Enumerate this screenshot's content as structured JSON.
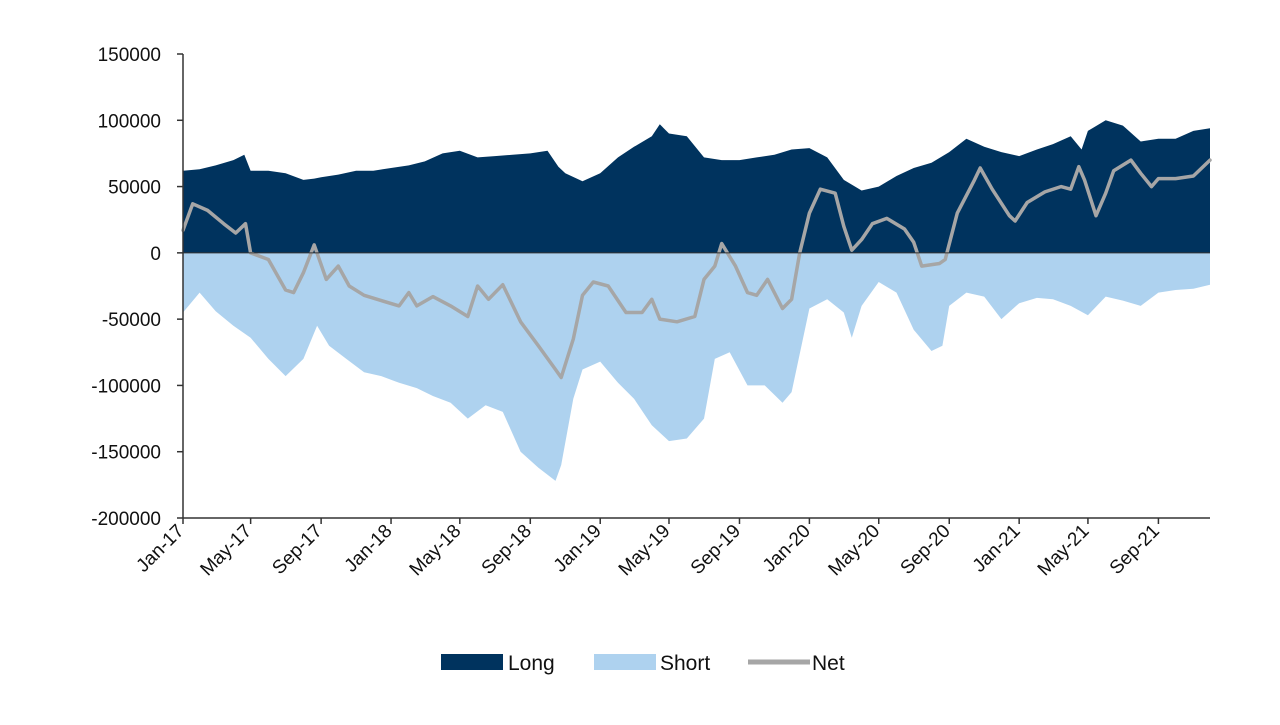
{
  "chart_data": {
    "type": "area",
    "title": "",
    "xlabel": "",
    "ylabel": "",
    "x_ticks": [
      "Jan-17",
      "May-17",
      "Sep-17",
      "Jan-18",
      "May-18",
      "Sep-18",
      "Jan-19",
      "May-19",
      "Sep-19",
      "Jan-20",
      "May-20",
      "Sep-20",
      "Jan-21",
      "May-21",
      "Sep-21"
    ],
    "y_ticks": [
      150000,
      100000,
      50000,
      0,
      -50000,
      -100000,
      -150000,
      -200000
    ],
    "ylim": [
      -200000,
      150000
    ],
    "xlim": [
      "2017-01-03",
      "2021-11-30"
    ],
    "grid": false,
    "legend_position": "bottom",
    "colors": {
      "Long": "#00335e",
      "Short": "#aed2ef",
      "Net": "#a6a6a6"
    },
    "series": [
      {
        "name": "Long",
        "style": "area",
        "points": [
          [
            "2017-01-03",
            62000
          ],
          [
            "2017-02-01",
            63000
          ],
          [
            "2017-03-01",
            66000
          ],
          [
            "2017-04-01",
            70000
          ],
          [
            "2017-04-20",
            74000
          ],
          [
            "2017-05-01",
            62000
          ],
          [
            "2017-06-01",
            62000
          ],
          [
            "2017-07-01",
            60000
          ],
          [
            "2017-08-01",
            55000
          ],
          [
            "2017-08-20",
            56000
          ],
          [
            "2017-09-01",
            57000
          ],
          [
            "2017-10-01",
            59000
          ],
          [
            "2017-11-01",
            62000
          ],
          [
            "2017-12-01",
            62000
          ],
          [
            "2018-01-01",
            64000
          ],
          [
            "2018-02-01",
            66000
          ],
          [
            "2018-03-01",
            69000
          ],
          [
            "2018-04-01",
            75000
          ],
          [
            "2018-05-01",
            77000
          ],
          [
            "2018-06-01",
            72000
          ],
          [
            "2018-07-01",
            73000
          ],
          [
            "2018-08-01",
            74000
          ],
          [
            "2018-09-01",
            75000
          ],
          [
            "2018-10-01",
            77000
          ],
          [
            "2018-10-20",
            65000
          ],
          [
            "2018-11-01",
            60000
          ],
          [
            "2018-12-01",
            54000
          ],
          [
            "2019-01-01",
            60000
          ],
          [
            "2019-02-01",
            72000
          ],
          [
            "2019-03-01",
            80000
          ],
          [
            "2019-04-01",
            88000
          ],
          [
            "2019-04-15",
            97000
          ],
          [
            "2019-05-01",
            90000
          ],
          [
            "2019-06-01",
            88000
          ],
          [
            "2019-07-01",
            72000
          ],
          [
            "2019-08-01",
            70000
          ],
          [
            "2019-09-01",
            70000
          ],
          [
            "2019-10-01",
            72000
          ],
          [
            "2019-11-01",
            74000
          ],
          [
            "2019-12-01",
            78000
          ],
          [
            "2020-01-01",
            79000
          ],
          [
            "2020-02-01",
            72000
          ],
          [
            "2020-03-01",
            55000
          ],
          [
            "2020-04-01",
            47000
          ],
          [
            "2020-05-01",
            50000
          ],
          [
            "2020-06-01",
            58000
          ],
          [
            "2020-07-01",
            64000
          ],
          [
            "2020-08-01",
            68000
          ],
          [
            "2020-09-01",
            76000
          ],
          [
            "2020-10-01",
            86000
          ],
          [
            "2020-11-01",
            80000
          ],
          [
            "2020-12-01",
            76000
          ],
          [
            "2021-01-01",
            73000
          ],
          [
            "2021-02-01",
            78000
          ],
          [
            "2021-03-01",
            82000
          ],
          [
            "2021-04-01",
            88000
          ],
          [
            "2021-04-20",
            78000
          ],
          [
            "2021-05-01",
            92000
          ],
          [
            "2021-06-01",
            100000
          ],
          [
            "2021-07-01",
            96000
          ],
          [
            "2021-08-01",
            84000
          ],
          [
            "2021-09-01",
            86000
          ],
          [
            "2021-10-01",
            86000
          ],
          [
            "2021-11-01",
            92000
          ],
          [
            "2021-11-30",
            94000
          ]
        ]
      },
      {
        "name": "Short",
        "style": "area",
        "points": [
          [
            "2017-01-03",
            -45000
          ],
          [
            "2017-02-01",
            -30000
          ],
          [
            "2017-03-01",
            -44000
          ],
          [
            "2017-04-01",
            -55000
          ],
          [
            "2017-05-01",
            -64000
          ],
          [
            "2017-06-01",
            -80000
          ],
          [
            "2017-07-01",
            -93000
          ],
          [
            "2017-08-01",
            -80000
          ],
          [
            "2017-08-25",
            -55000
          ],
          [
            "2017-09-15",
            -70000
          ],
          [
            "2017-10-15",
            -80000
          ],
          [
            "2017-11-15",
            -90000
          ],
          [
            "2017-12-15",
            -93000
          ],
          [
            "2018-01-15",
            -98000
          ],
          [
            "2018-02-15",
            -102000
          ],
          [
            "2018-03-15",
            -108000
          ],
          [
            "2018-04-15",
            -113000
          ],
          [
            "2018-05-15",
            -125000
          ],
          [
            "2018-06-15",
            -115000
          ],
          [
            "2018-07-15",
            -120000
          ],
          [
            "2018-08-15",
            -150000
          ],
          [
            "2018-09-15",
            -162000
          ],
          [
            "2018-10-15",
            -172000
          ],
          [
            "2018-10-25",
            -160000
          ],
          [
            "2018-11-15",
            -110000
          ],
          [
            "2018-12-01",
            -88000
          ],
          [
            "2019-01-01",
            -82000
          ],
          [
            "2019-02-01",
            -98000
          ],
          [
            "2019-03-01",
            -110000
          ],
          [
            "2019-04-01",
            -130000
          ],
          [
            "2019-05-01",
            -142000
          ],
          [
            "2019-06-01",
            -140000
          ],
          [
            "2019-07-01",
            -125000
          ],
          [
            "2019-07-20",
            -80000
          ],
          [
            "2019-08-15",
            -75000
          ],
          [
            "2019-09-15",
            -100000
          ],
          [
            "2019-10-15",
            -100000
          ],
          [
            "2019-11-15",
            -113000
          ],
          [
            "2019-12-01",
            -105000
          ],
          [
            "2020-01-01",
            -42000
          ],
          [
            "2020-02-01",
            -35000
          ],
          [
            "2020-03-01",
            -45000
          ],
          [
            "2020-03-15",
            -64000
          ],
          [
            "2020-04-01",
            -40000
          ],
          [
            "2020-05-01",
            -22000
          ],
          [
            "2020-06-01",
            -30000
          ],
          [
            "2020-07-01",
            -58000
          ],
          [
            "2020-08-01",
            -74000
          ],
          [
            "2020-08-20",
            -70000
          ],
          [
            "2020-09-01",
            -40000
          ],
          [
            "2020-10-01",
            -30000
          ],
          [
            "2020-11-01",
            -33000
          ],
          [
            "2020-12-01",
            -50000
          ],
          [
            "2021-01-01",
            -38000
          ],
          [
            "2021-02-01",
            -34000
          ],
          [
            "2021-03-01",
            -35000
          ],
          [
            "2021-04-01",
            -40000
          ],
          [
            "2021-05-01",
            -47000
          ],
          [
            "2021-06-01",
            -33000
          ],
          [
            "2021-07-01",
            -36000
          ],
          [
            "2021-08-01",
            -40000
          ],
          [
            "2021-09-01",
            -30000
          ],
          [
            "2021-10-01",
            -28000
          ],
          [
            "2021-11-01",
            -27000
          ],
          [
            "2021-11-30",
            -24000
          ]
        ]
      },
      {
        "name": "Net",
        "style": "line",
        "points": [
          [
            "2017-01-03",
            17000
          ],
          [
            "2017-01-20",
            37000
          ],
          [
            "2017-02-15",
            32000
          ],
          [
            "2017-03-15",
            22000
          ],
          [
            "2017-04-05",
            15000
          ],
          [
            "2017-04-22",
            22000
          ],
          [
            "2017-05-01",
            0
          ],
          [
            "2017-06-01",
            -5000
          ],
          [
            "2017-07-01",
            -28000
          ],
          [
            "2017-07-15",
            -30000
          ],
          [
            "2017-08-01",
            -15000
          ],
          [
            "2017-08-20",
            6000
          ],
          [
            "2017-09-10",
            -20000
          ],
          [
            "2017-10-01",
            -10000
          ],
          [
            "2017-10-20",
            -25000
          ],
          [
            "2017-11-15",
            -32000
          ],
          [
            "2017-12-15",
            -36000
          ],
          [
            "2018-01-15",
            -40000
          ],
          [
            "2018-02-01",
            -30000
          ],
          [
            "2018-02-15",
            -40000
          ],
          [
            "2018-03-15",
            -33000
          ],
          [
            "2018-04-15",
            -40000
          ],
          [
            "2018-05-15",
            -48000
          ],
          [
            "2018-06-01",
            -25000
          ],
          [
            "2018-06-20",
            -35000
          ],
          [
            "2018-07-15",
            -24000
          ],
          [
            "2018-08-15",
            -52000
          ],
          [
            "2018-09-15",
            -70000
          ],
          [
            "2018-10-15",
            -88000
          ],
          [
            "2018-10-25",
            -94000
          ],
          [
            "2018-11-15",
            -65000
          ],
          [
            "2018-12-01",
            -32000
          ],
          [
            "2018-12-20",
            -22000
          ],
          [
            "2019-01-15",
            -25000
          ],
          [
            "2019-02-15",
            -45000
          ],
          [
            "2019-03-15",
            -45000
          ],
          [
            "2019-04-01",
            -35000
          ],
          [
            "2019-04-15",
            -50000
          ],
          [
            "2019-05-15",
            -52000
          ],
          [
            "2019-06-15",
            -48000
          ],
          [
            "2019-07-01",
            -20000
          ],
          [
            "2019-07-20",
            -10000
          ],
          [
            "2019-08-01",
            7000
          ],
          [
            "2019-08-25",
            -10000
          ],
          [
            "2019-09-15",
            -30000
          ],
          [
            "2019-10-01",
            -32000
          ],
          [
            "2019-10-20",
            -20000
          ],
          [
            "2019-11-15",
            -42000
          ],
          [
            "2019-12-01",
            -35000
          ],
          [
            "2019-12-15",
            0
          ],
          [
            "2020-01-01",
            30000
          ],
          [
            "2020-01-20",
            48000
          ],
          [
            "2020-02-15",
            45000
          ],
          [
            "2020-03-01",
            20000
          ],
          [
            "2020-03-15",
            2000
          ],
          [
            "2020-04-01",
            10000
          ],
          [
            "2020-04-20",
            22000
          ],
          [
            "2020-05-15",
            26000
          ],
          [
            "2020-06-15",
            18000
          ],
          [
            "2020-07-01",
            8000
          ],
          [
            "2020-07-15",
            -10000
          ],
          [
            "2020-08-15",
            -8000
          ],
          [
            "2020-08-25",
            -5000
          ],
          [
            "2020-09-15",
            30000
          ],
          [
            "2020-10-15",
            55000
          ],
          [
            "2020-10-25",
            64000
          ],
          [
            "2020-11-15",
            48000
          ],
          [
            "2020-12-15",
            28000
          ],
          [
            "2020-12-25",
            24000
          ],
          [
            "2021-01-15",
            38000
          ],
          [
            "2021-02-15",
            46000
          ],
          [
            "2021-03-15",
            50000
          ],
          [
            "2021-04-01",
            48000
          ],
          [
            "2021-04-15",
            65000
          ],
          [
            "2021-04-25",
            55000
          ],
          [
            "2021-05-15",
            28000
          ],
          [
            "2021-06-01",
            45000
          ],
          [
            "2021-06-15",
            62000
          ],
          [
            "2021-07-15",
            70000
          ],
          [
            "2021-08-01",
            60000
          ],
          [
            "2021-08-20",
            50000
          ],
          [
            "2021-09-01",
            56000
          ],
          [
            "2021-10-01",
            56000
          ],
          [
            "2021-11-01",
            58000
          ],
          [
            "2021-11-30",
            70000
          ]
        ]
      }
    ]
  }
}
